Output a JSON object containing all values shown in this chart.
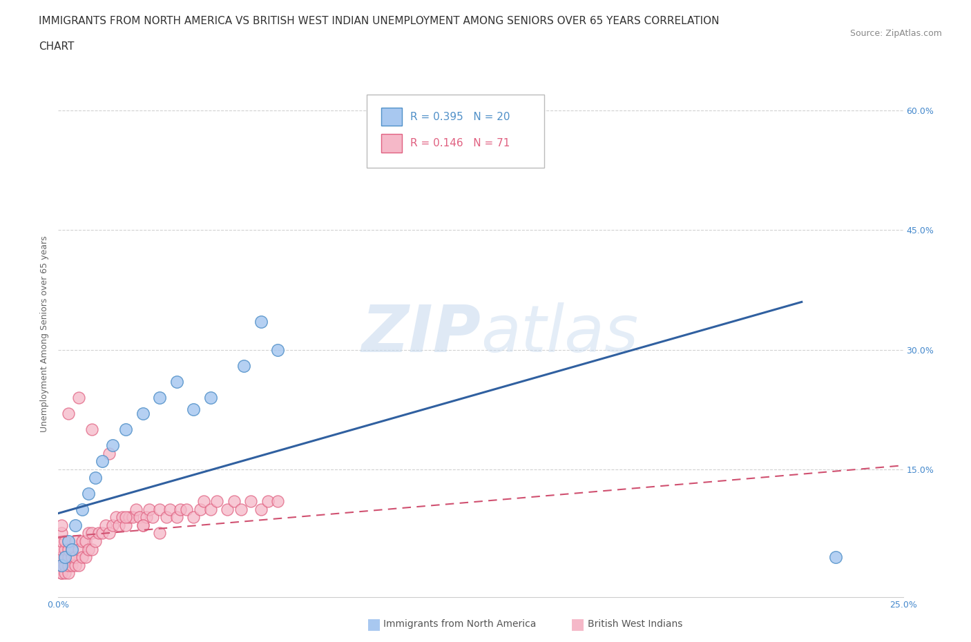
{
  "title_line1": "IMMIGRANTS FROM NORTH AMERICA VS BRITISH WEST INDIAN UNEMPLOYMENT AMONG SENIORS OVER 65 YEARS CORRELATION",
  "title_line2": "CHART",
  "source": "Source: ZipAtlas.com",
  "ylabel": "Unemployment Among Seniors over 65 years",
  "yticks_right": [
    "15.0%",
    "30.0%",
    "45.0%",
    "60.0%"
  ],
  "yticks_right_vals": [
    0.15,
    0.3,
    0.45,
    0.6
  ],
  "xlim": [
    0.0,
    0.25
  ],
  "ylim": [
    -0.01,
    0.65
  ],
  "legend_r1": "R = 0.395",
  "legend_n1": "N = 20",
  "legend_r2": "R = 0.146",
  "legend_n2": "N = 71",
  "blue_color": "#A8C8F0",
  "pink_color": "#F5B8C8",
  "blue_edge_color": "#5090C8",
  "pink_edge_color": "#E06080",
  "blue_line_color": "#3060A0",
  "pink_line_color": "#D05070",
  "background_color": "#FFFFFF",
  "grid_color": "#CCCCCC",
  "watermark_color": "#D0DFF0",
  "north_america_x": [
    0.001,
    0.002,
    0.003,
    0.004,
    0.005,
    0.007,
    0.009,
    0.011,
    0.013,
    0.016,
    0.02,
    0.025,
    0.03,
    0.035,
    0.04,
    0.045,
    0.055,
    0.06,
    0.065,
    0.23
  ],
  "north_america_y": [
    0.03,
    0.04,
    0.06,
    0.05,
    0.08,
    0.1,
    0.12,
    0.14,
    0.16,
    0.18,
    0.2,
    0.22,
    0.24,
    0.26,
    0.225,
    0.24,
    0.28,
    0.335,
    0.3,
    0.04
  ],
  "bwi_x": [
    0.001,
    0.001,
    0.001,
    0.001,
    0.001,
    0.001,
    0.001,
    0.001,
    0.001,
    0.001,
    0.002,
    0.002,
    0.002,
    0.002,
    0.002,
    0.003,
    0.003,
    0.003,
    0.003,
    0.004,
    0.004,
    0.004,
    0.005,
    0.005,
    0.005,
    0.006,
    0.006,
    0.007,
    0.007,
    0.008,
    0.008,
    0.009,
    0.009,
    0.01,
    0.01,
    0.011,
    0.012,
    0.013,
    0.014,
    0.015,
    0.016,
    0.017,
    0.018,
    0.019,
    0.02,
    0.021,
    0.022,
    0.023,
    0.024,
    0.025,
    0.026,
    0.027,
    0.028,
    0.03,
    0.032,
    0.033,
    0.035,
    0.036,
    0.038,
    0.04,
    0.042,
    0.043,
    0.045,
    0.047,
    0.05,
    0.052,
    0.054,
    0.057,
    0.06,
    0.062,
    0.065
  ],
  "bwi_y": [
    0.02,
    0.02,
    0.03,
    0.03,
    0.04,
    0.04,
    0.05,
    0.06,
    0.07,
    0.08,
    0.02,
    0.03,
    0.04,
    0.05,
    0.06,
    0.02,
    0.03,
    0.04,
    0.05,
    0.03,
    0.04,
    0.05,
    0.03,
    0.04,
    0.06,
    0.03,
    0.05,
    0.04,
    0.06,
    0.04,
    0.06,
    0.05,
    0.07,
    0.05,
    0.07,
    0.06,
    0.07,
    0.07,
    0.08,
    0.07,
    0.08,
    0.09,
    0.08,
    0.09,
    0.08,
    0.09,
    0.09,
    0.1,
    0.09,
    0.08,
    0.09,
    0.1,
    0.09,
    0.1,
    0.09,
    0.1,
    0.09,
    0.1,
    0.1,
    0.09,
    0.1,
    0.11,
    0.1,
    0.11,
    0.1,
    0.11,
    0.1,
    0.11,
    0.1,
    0.11,
    0.11
  ],
  "bwi_extra_x": [
    0.003,
    0.006,
    0.01,
    0.015,
    0.02,
    0.025,
    0.03
  ],
  "bwi_extra_y": [
    0.22,
    0.24,
    0.2,
    0.17,
    0.09,
    0.08,
    0.07
  ],
  "blue_trendline_x0": 0.0,
  "blue_trendline_y0": 0.095,
  "blue_trendline_x1": 0.22,
  "blue_trendline_y1": 0.36,
  "pink_trendline_x0": 0.0,
  "pink_trendline_y0": 0.065,
  "pink_trendline_x1": 0.25,
  "pink_trendline_y1": 0.155,
  "title_fontsize": 11,
  "source_fontsize": 9,
  "label_fontsize": 9,
  "tick_fontsize": 9,
  "legend_fontsize": 11
}
